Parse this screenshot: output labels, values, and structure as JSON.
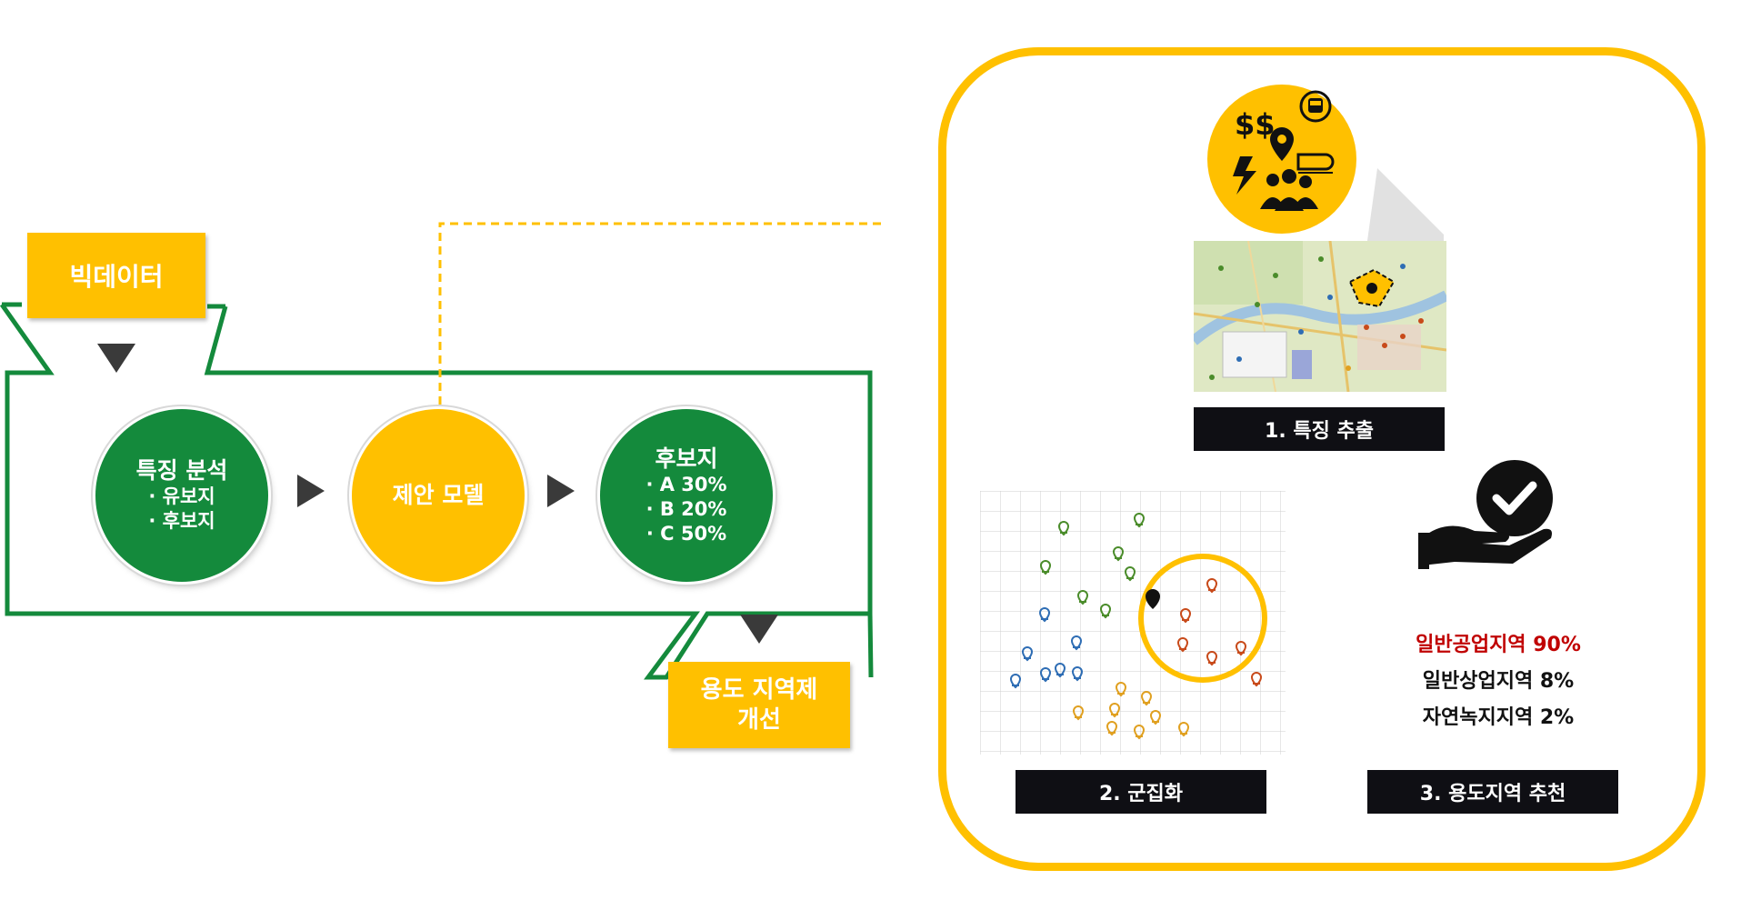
{
  "input": {
    "label": "빅데이터"
  },
  "process": {
    "step1": {
      "title": "특징 분석",
      "items": [
        "· 유보지",
        "· 후보지"
      ]
    },
    "step2": {
      "title": "제안 모델"
    },
    "step3": {
      "title": "후보지",
      "items": [
        "· A 30%",
        "· B 20%",
        "· C 50%"
      ]
    }
  },
  "output": {
    "line1": "용도 지역제",
    "line2": "개선"
  },
  "model_detail": {
    "step1_label": "1. 특징 추출",
    "step2_label": "2. 군집화",
    "step3_label": "3. 용도지역 추천",
    "recommendations": [
      {
        "text": "일반공업지역 90%",
        "color": "#c00000"
      },
      {
        "text": "일반상업지역 8%",
        "color": "#111111"
      },
      {
        "text": "자연녹지지역 2%",
        "color": "#111111"
      }
    ]
  },
  "colors": {
    "green": "#148a3c",
    "yellow": "#ffc000",
    "dark": "#0f0f14",
    "pin_green": "#4a8c2a",
    "pin_blue": "#2e6db4",
    "pin_orange": "#e0a020",
    "pin_red": "#c84a1a"
  },
  "icons": [
    "dollar-icon",
    "location-pin-icon",
    "bus-icon",
    "train-icon",
    "lightning-icon",
    "people-icon",
    "hand-check-icon"
  ]
}
